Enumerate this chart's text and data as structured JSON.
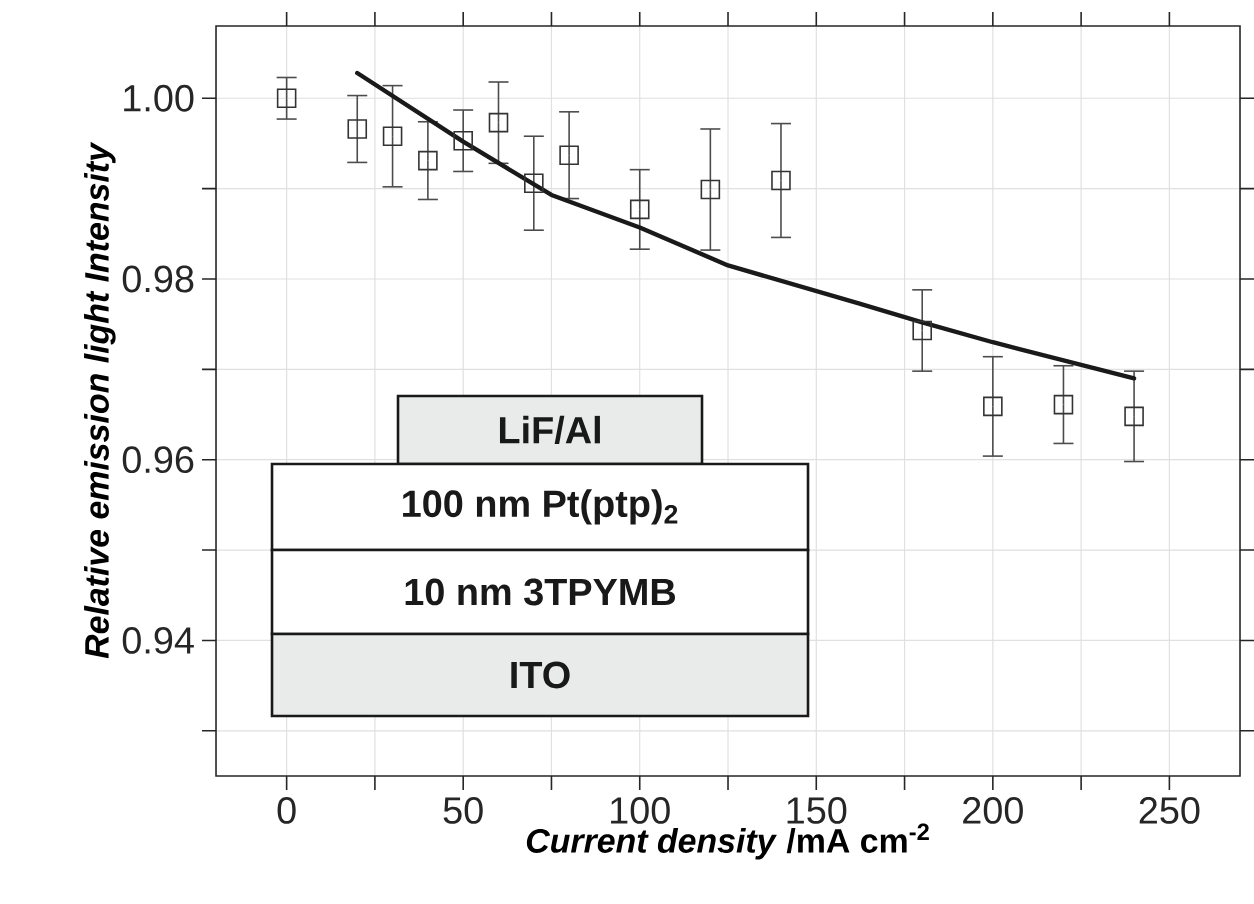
{
  "chart_data": {
    "type": "scatter",
    "xlabel": "*Current density* /mA cm$^{-2}$",
    "ylabel": "Relative emission light Intensity",
    "xlim": [
      -20,
      270
    ],
    "ylim": [
      0.925,
      1.008
    ],
    "xticks": [
      0,
      {
        "value": 25,
        "label": null
      },
      50,
      {
        "value": 75,
        "label": null
      },
      100,
      {
        "value": 125,
        "label": null
      },
      150,
      {
        "value": 175,
        "label": null
      },
      200,
      {
        "value": 225,
        "label": null
      },
      250
    ],
    "yticks": [
      {
        "value": 0.93,
        "label": null
      },
      0.94,
      {
        "value": 0.95,
        "label": null
      },
      0.96,
      {
        "value": 0.97,
        "label": null
      },
      0.98,
      {
        "value": 0.99,
        "label": null
      },
      {
        "value": 1.0,
        "label": "1.00"
      }
    ],
    "grid": true,
    "series": [
      {
        "color": "#333333",
        "marker": "square",
        "x": [
          0,
          20,
          30,
          40,
          50,
          60,
          70,
          80,
          100,
          120,
          140,
          180,
          200,
          220,
          240
        ],
        "values": [
          1.0,
          0.9966,
          0.9958,
          0.9931,
          0.9953,
          0.9973,
          0.9906,
          0.9937,
          0.9877,
          0.9899,
          0.9909,
          0.9743,
          0.9659,
          0.9661,
          0.9648
        ],
        "errors": [
          0.0023,
          0.0037,
          0.0056,
          0.0043,
          0.0034,
          0.0045,
          0.0052,
          0.0048,
          0.0044,
          0.0067,
          0.0063,
          0.0045,
          0.0055,
          0.0043,
          0.005
        ]
      },
      {
        "type": "line",
        "color": "#1a1a1a",
        "marker": "none",
        "x": [
          20,
          50,
          75,
          100,
          125,
          162,
          180,
          200,
          240
        ],
        "values": [
          1.0028,
          0.9952,
          0.9893,
          0.9857,
          0.9815,
          0.9773,
          0.9752,
          0.973,
          0.969
        ]
      }
    ],
    "annotations": [
      "LiF/Al",
      "100 nm Pt(ptp)$_{2}$",
      "10 nm 3TPYMB",
      "ITO"
    ]
  }
}
